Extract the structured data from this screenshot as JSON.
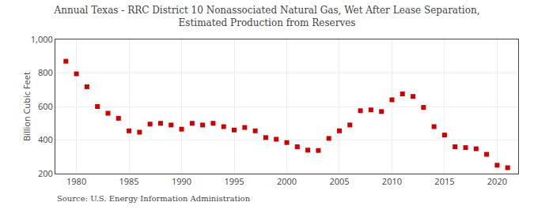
{
  "chart_data": {
    "type": "scatter",
    "title": "Annual Texas - RRC District 10 Nonassociated Natural Gas, Wet After Lease Separation,\nEstimated Production from Reserves",
    "ylabel": "Billion Cubic Feet",
    "source": "Source: U.S. Energy Information Administration",
    "x": [
      1979,
      1980,
      1981,
      1982,
      1983,
      1984,
      1985,
      1986,
      1987,
      1988,
      1989,
      1990,
      1991,
      1992,
      1993,
      1994,
      1995,
      1996,
      1997,
      1998,
      1999,
      2000,
      2001,
      2002,
      2003,
      2004,
      2005,
      2006,
      2007,
      2008,
      2009,
      2010,
      2011,
      2012,
      2013,
      2014,
      2015,
      2016,
      2017,
      2018,
      2019,
      2020,
      2021
    ],
    "values": [
      870,
      795,
      718,
      600,
      560,
      530,
      455,
      447,
      495,
      500,
      490,
      465,
      500,
      490,
      500,
      480,
      460,
      475,
      455,
      415,
      405,
      385,
      360,
      340,
      338,
      410,
      455,
      490,
      575,
      580,
      570,
      640,
      675,
      660,
      595,
      480,
      430,
      360,
      355,
      348,
      315,
      250,
      235
    ],
    "color": "#cc0000",
    "marker": "square",
    "xlim": [
      1978,
      2022
    ],
    "xticks": [
      1980,
      1985,
      1990,
      1995,
      2000,
      2005,
      2010,
      2015,
      2020
    ],
    "ylim": [
      200,
      1000
    ],
    "yticks": [
      200,
      400,
      600,
      {
        "value": 1000,
        "label": "1,000"
      },
      800
    ],
    "grid": true
  }
}
